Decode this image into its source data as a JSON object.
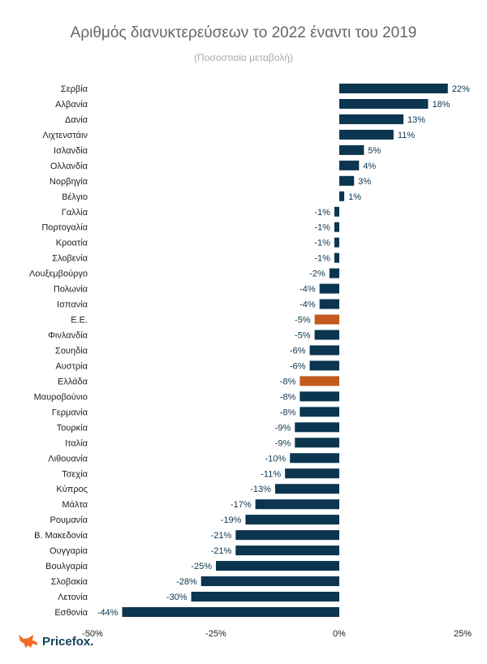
{
  "chart_data": {
    "type": "bar",
    "orientation": "horizontal",
    "title": "Αριθμός διανυκτερεύσεων το 2022 έναντι του 2019",
    "subtitle": "(Ποσοστιαία μεταβολή)",
    "categories": [
      "Σερβία",
      "Αλβανία",
      "Δανία",
      "Λιχτενστάιν",
      "Ισλανδία",
      "Ολλανδία",
      "Νορβηγία",
      "Βέλγιο",
      "Γαλλία",
      "Πορτογαλία",
      "Κροατία",
      "Σλοβενία",
      "Λουξεμβούργο",
      "Πολωνία",
      "Ισπανία",
      "Ε.Ε.",
      "Φινλανδία",
      "Σουηδία",
      "Αυστρία",
      "Ελλάδα",
      "Μαυροβούνιο",
      "Γερμανία",
      "Τουρκία",
      "Ιταλία",
      "Λιθουανία",
      "Τσεχία",
      "Κύπρος",
      "Μάλτα",
      "Ρουμανία",
      "Β. Μακεδονία",
      "Ουγγαρία",
      "Βουλγαρία",
      "Σλοβακία",
      "Λετονία",
      "Εσθονία"
    ],
    "values": [
      22,
      18,
      13,
      11,
      5,
      4,
      3,
      1,
      -1,
      -1,
      -1,
      -1,
      -2,
      -4,
      -4,
      -5,
      -5,
      -6,
      -6,
      -8,
      -8,
      -8,
      -9,
      -9,
      -10,
      -11,
      -13,
      -17,
      -19,
      -21,
      -21,
      -25,
      -28,
      -30,
      -44
    ],
    "value_suffix": "%",
    "highlighted": [
      "Ε.Ε.",
      "Ελλάδα"
    ],
    "xlim": [
      -50,
      25
    ],
    "xticks": [
      "-50%",
      "-25%",
      "0%",
      "25%"
    ],
    "xtick_values": [
      -50,
      -25,
      0,
      25
    ],
    "grid": false,
    "colors": {
      "default": "#0b3550",
      "highlight": "#c45a1e"
    }
  },
  "brand": {
    "name": "Pricefox.",
    "logo_icon": "fox-icon",
    "color": "#f26b21"
  }
}
